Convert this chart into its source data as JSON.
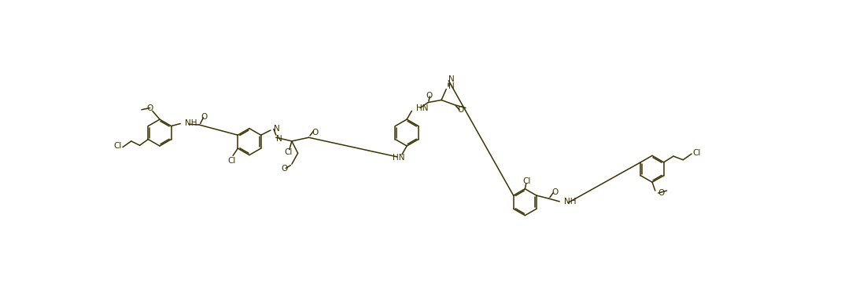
{
  "bg_color": "#ffffff",
  "bond_color": "#3a3200",
  "figsize": [
    10.97,
    3.76
  ],
  "dpi": 100,
  "xlim": [
    0,
    1097
  ],
  "ylim": [
    0,
    376
  ]
}
